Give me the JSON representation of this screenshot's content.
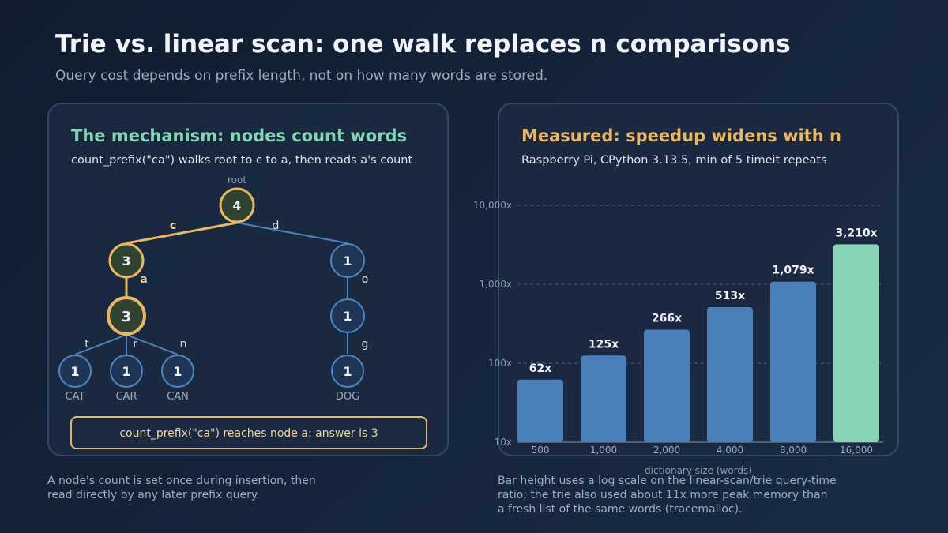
{
  "header": {
    "title": "Trie vs. linear scan: one walk replaces n comparisons",
    "subtitle": "Query cost depends on prefix length, not on how many words are stored."
  },
  "left_panel": {
    "title": "The mechanism: nodes count words",
    "subtitle": "count_prefix(\"ca\") walks root to c to a, then reads a's count",
    "root_label": "root",
    "nodes": {
      "root": "4",
      "c": "3",
      "a": "3",
      "t": "1",
      "r": "1",
      "n": "1",
      "d": "1",
      "o": "1",
      "g": "1"
    },
    "edges": {
      "c": "c",
      "d": "d",
      "a": "a",
      "o": "o",
      "t": "t",
      "r": "r",
      "n": "n",
      "g": "g"
    },
    "words": {
      "cat": "CAT",
      "car": "CAR",
      "can": "CAN",
      "dog": "DOG"
    },
    "callout": "count_prefix(\"ca\") reaches node a: answer is 3",
    "colors": {
      "highlight": "#e8b766",
      "highlight_fill": "#2f4330",
      "node_stroke": "#4f86c0",
      "node_fill": "#1f3556"
    }
  },
  "right_panel": {
    "title": "Measured: speedup widens with n",
    "subtitle": "Raspberry Pi, CPython 3.13.5, min of 5 timeit repeats"
  },
  "chart_data": {
    "type": "bar",
    "categories": [
      "500",
      "1,000",
      "2,000",
      "4,000",
      "8,000",
      "16,000"
    ],
    "values": [
      62,
      125,
      266,
      513,
      1079,
      3210
    ],
    "value_labels": [
      "62x",
      "125x",
      "266x",
      "513x",
      "1,079x",
      "3,210x"
    ],
    "xlabel": "dictionary size (words)",
    "ylabel": "",
    "y_scale": "log",
    "ylim": [
      10,
      10000
    ],
    "y_ticks": [
      10,
      100,
      1000,
      10000
    ],
    "y_tick_labels": [
      "10x",
      "100x",
      "1,000x",
      "10,000x"
    ],
    "grid": true,
    "colors": {
      "bar": "#4a7fbb",
      "highlight_bar": "#86d3b5"
    }
  },
  "notes": {
    "left": "A node's count is set once during insertion, then read directly by any later prefix query.",
    "right": "Bar height uses a log scale on the linear-scan/trie query-time ratio; the trie also used about 11x more peak memory than a fresh list of the same words (tracemalloc)."
  }
}
